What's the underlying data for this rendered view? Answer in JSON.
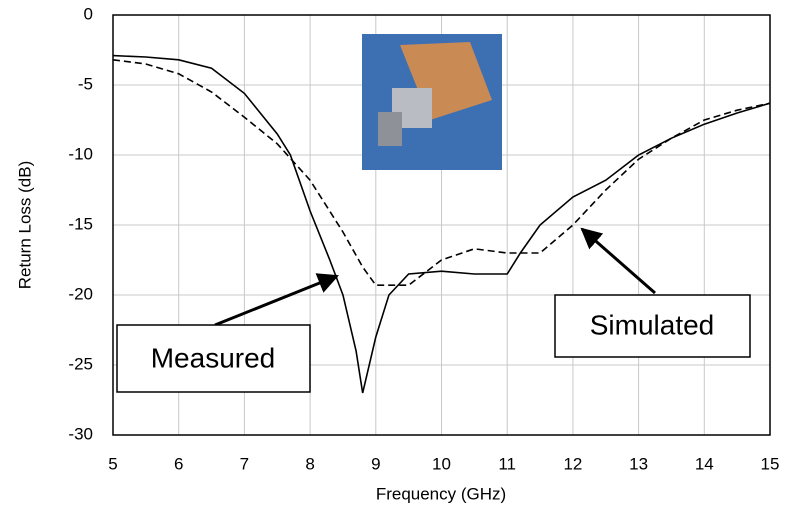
{
  "chart_data": {
    "type": "line",
    "x_label": "Frequency (GHz)",
    "y_label": "Return Loss (dB)",
    "xlim": [
      5,
      15
    ],
    "ylim": [
      -30,
      0
    ],
    "xticks": [
      5,
      6,
      7,
      8,
      9,
      10,
      11,
      12,
      13,
      14,
      15
    ],
    "yticks": [
      0,
      -5,
      -10,
      -15,
      -20,
      -25,
      -30
    ],
    "grid": true,
    "annotations": [
      "Measured",
      "Simulated"
    ],
    "series": [
      {
        "name": "Measured",
        "color": "#000000",
        "dash": false,
        "x": [
          5,
          5.5,
          6,
          6.5,
          7,
          7.5,
          7.7,
          8,
          8.3,
          8.5,
          8.7,
          8.8,
          9,
          9.2,
          9.5,
          10,
          10.5,
          11,
          11.2,
          11.5,
          12,
          12.5,
          13,
          13.5,
          14,
          14.5,
          15
        ],
        "values": [
          -2.9,
          -3.0,
          -3.2,
          -3.8,
          -5.6,
          -8.5,
          -10,
          -14,
          -17.5,
          -20,
          -24,
          -27,
          -23,
          -20,
          -18.5,
          -18.3,
          -18.5,
          -18.5,
          -17,
          -15,
          -13,
          -11.8,
          -10,
          -8.8,
          -7.8,
          -7,
          -6.3
        ]
      },
      {
        "name": "Simulated",
        "color": "#000000",
        "dash": true,
        "x": [
          5,
          5.5,
          6,
          6.5,
          7,
          7.5,
          8,
          8.5,
          8.8,
          9,
          9.5,
          10,
          10.5,
          11,
          11.5,
          12,
          12.5,
          13,
          13.5,
          14,
          14.5,
          15
        ],
        "values": [
          -3.2,
          -3.5,
          -4.2,
          -5.5,
          -7.3,
          -9.2,
          -11.8,
          -15.5,
          -18,
          -19.3,
          -19.3,
          -17.5,
          -16.7,
          -17,
          -17,
          -15,
          -12.5,
          -10.3,
          -8.8,
          -7.5,
          -6.8,
          -6.3
        ]
      }
    ]
  }
}
